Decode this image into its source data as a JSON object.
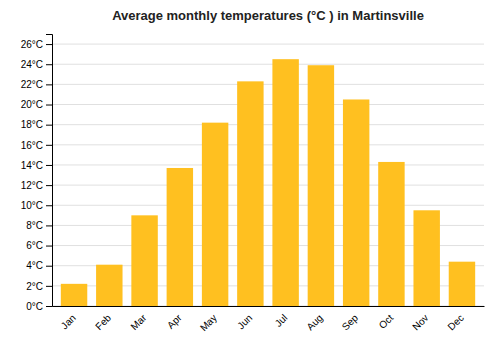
{
  "chart_data": {
    "type": "bar",
    "title": "Average monthly temperatures (°C ) in Martinsville",
    "categories": [
      "Jan",
      "Feb",
      "Mar",
      "Apr",
      "May",
      "Jun",
      "Jul",
      "Aug",
      "Sep",
      "Oct",
      "Nov",
      "Dec"
    ],
    "values": [
      2.2,
      4.1,
      9.0,
      13.7,
      18.2,
      22.3,
      24.5,
      23.9,
      20.5,
      14.3,
      9.5,
      4.4
    ],
    "color": "#FFC020",
    "ylim": [
      0,
      27
    ],
    "yticks": [
      {
        "value": 0,
        "label": "0°C"
      },
      {
        "value": 2,
        "label": "2°C"
      },
      {
        "value": 4,
        "label": "4°C"
      },
      {
        "value": 6,
        "label": "6°C"
      },
      {
        "value": 8,
        "label": "8°C"
      },
      {
        "value": 10,
        "label": "10°C"
      },
      {
        "value": 12,
        "label": "12°C"
      },
      {
        "value": 14,
        "label": "14°C"
      },
      {
        "value": 16,
        "label": "16°C"
      },
      {
        "value": 18,
        "label": "18°C"
      },
      {
        "value": 20,
        "label": "20°C"
      },
      {
        "value": 22,
        "label": "22°C"
      },
      {
        "value": 24,
        "label": "24°C"
      },
      {
        "value": 26,
        "label": "26°C"
      }
    ],
    "grid": true
  }
}
